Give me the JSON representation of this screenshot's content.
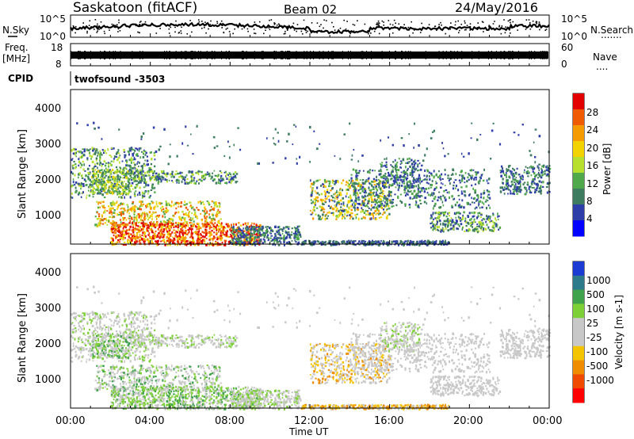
{
  "header": {
    "station": "Saskatoon (fitACF)",
    "beam": "Beam 02",
    "date": "24/May/2016"
  },
  "left_labels": {
    "nsky": "N.Sky",
    "freq": "Freq.",
    "freq_unit": "[MHz]",
    "cpid": "CPID"
  },
  "right_labels": {
    "nsearch": "N.Search",
    "nsearch_dots": ".......",
    "nave": "Nave",
    "nave_dots": "...."
  },
  "cpid_name": "twofsound",
  "cpid_value": "-3503",
  "colors": {
    "power": [
      "#0000ff",
      "#2e3ea8",
      "#3d7c5e",
      "#4fa84a",
      "#b6df2e",
      "#f2d300",
      "#f59b00",
      "#f05a00",
      "#e20000"
    ],
    "velocity": [
      "#ff0000",
      "#f04a00",
      "#f08c00",
      "#f5c400",
      "#c8c8c8",
      "#c8c8c8",
      "#7dd035",
      "#3fa24d",
      "#2d7a8a",
      "#1a3cd2"
    ]
  },
  "chart_data": [
    {
      "type": "line",
      "panel": "noise",
      "series": [
        {
          "name": "N.Sky"
        },
        {
          "name": "N.Search"
        }
      ],
      "y_ticks_left": [
        "10^5",
        "10^0"
      ],
      "y_ticks_right": [
        "10^5",
        "10^0"
      ],
      "ylim": [
        0,
        5
      ],
      "yscale": "log"
    },
    {
      "type": "line",
      "panel": "frequency_nave",
      "y_ticks_left": [
        "18",
        "8"
      ],
      "y_ticks_right": [
        "60",
        "0"
      ],
      "freq_mhz": 11,
      "freq_ylim": [
        8,
        18
      ]
    },
    {
      "type": "heatmap",
      "panel": "power",
      "ylabel": "Slant Range [km]",
      "y_ticks": [
        "1000",
        "2000",
        "3000",
        "4000"
      ],
      "ylim": [
        180,
        4500
      ],
      "colorbar_label": "Power [dB]",
      "colorbar_ticks": [
        "4",
        "8",
        "12",
        "16",
        "20",
        "24",
        "28"
      ],
      "colorbar_range": [
        0,
        32
      ]
    },
    {
      "type": "heatmap",
      "panel": "velocity",
      "ylabel": "Slant Range [km]",
      "y_ticks": [
        "1000",
        "2000",
        "3000",
        "4000"
      ],
      "ylim": [
        180,
        4500
      ],
      "colorbar_label": "Velocity [m s-1]",
      "colorbar_ticks": [
        "1000",
        "500",
        "100",
        "25",
        "-25",
        "-100",
        "-500",
        "-1000"
      ]
    }
  ],
  "x_axis": {
    "label": "Time UT",
    "ticks": [
      "00:00",
      "04:00",
      "08:00",
      "12:00",
      "16:00",
      "20:00",
      "00:00"
    ]
  }
}
